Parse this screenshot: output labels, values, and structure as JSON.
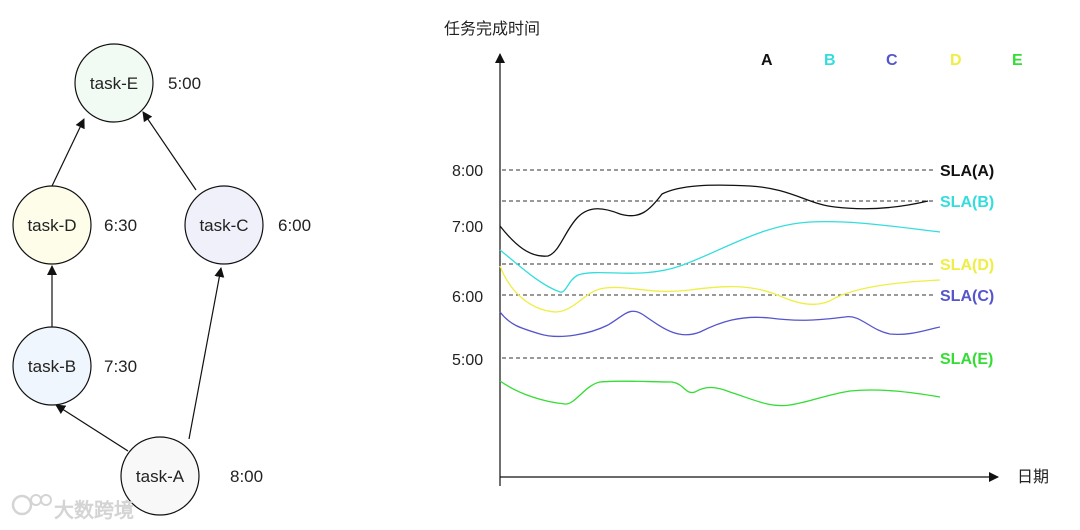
{
  "dag": {
    "nodes": [
      {
        "id": "task-E",
        "label": "task-E",
        "time": "5:00",
        "fill": "#f1fbf4"
      },
      {
        "id": "task-D",
        "label": "task-D",
        "time": "6:30",
        "fill": "#fdfdea"
      },
      {
        "id": "task-C",
        "label": "task-C",
        "time": "6:00",
        "fill": "#f0f0fb"
      },
      {
        "id": "task-B",
        "label": "task-B",
        "time": "7:30",
        "fill": "#f0f6fd"
      },
      {
        "id": "task-A",
        "label": "task-A",
        "time": "8:00",
        "fill": "#f8f8f8"
      }
    ],
    "edges": [
      {
        "from": "task-A",
        "to": "task-B"
      },
      {
        "from": "task-A",
        "to": "task-C"
      },
      {
        "from": "task-B",
        "to": "task-D"
      },
      {
        "from": "task-D",
        "to": "task-E"
      },
      {
        "from": "task-C",
        "to": "task-E"
      }
    ]
  },
  "chart": {
    "y_axis_label": "任务完成时间",
    "x_axis_label": "日期",
    "y_ticks": [
      "8:00",
      "7:00",
      "6:00",
      "5:00"
    ],
    "legend": [
      {
        "name": "A",
        "color": "#111111"
      },
      {
        "name": "B",
        "color": "#33dddd"
      },
      {
        "name": "C",
        "color": "#5555cc"
      },
      {
        "name": "D",
        "color": "#eeee44"
      },
      {
        "name": "E",
        "color": "#33dd33"
      }
    ],
    "sla_lines": [
      {
        "label": "SLA(A)",
        "time": "8:00",
        "color": "#111111"
      },
      {
        "label": "SLA(B)",
        "time": "7:30",
        "color": "#33dddd"
      },
      {
        "label": "SLA(D)",
        "time": "6:30",
        "color": "#eeee44"
      },
      {
        "label": "SLA(C)",
        "time": "6:00",
        "color": "#5555cc"
      },
      {
        "label": "SLA(E)",
        "time": "5:00",
        "color": "#33dd33"
      }
    ]
  },
  "watermark": {
    "text": "大数跨境",
    "icon": "logo-icon"
  }
}
